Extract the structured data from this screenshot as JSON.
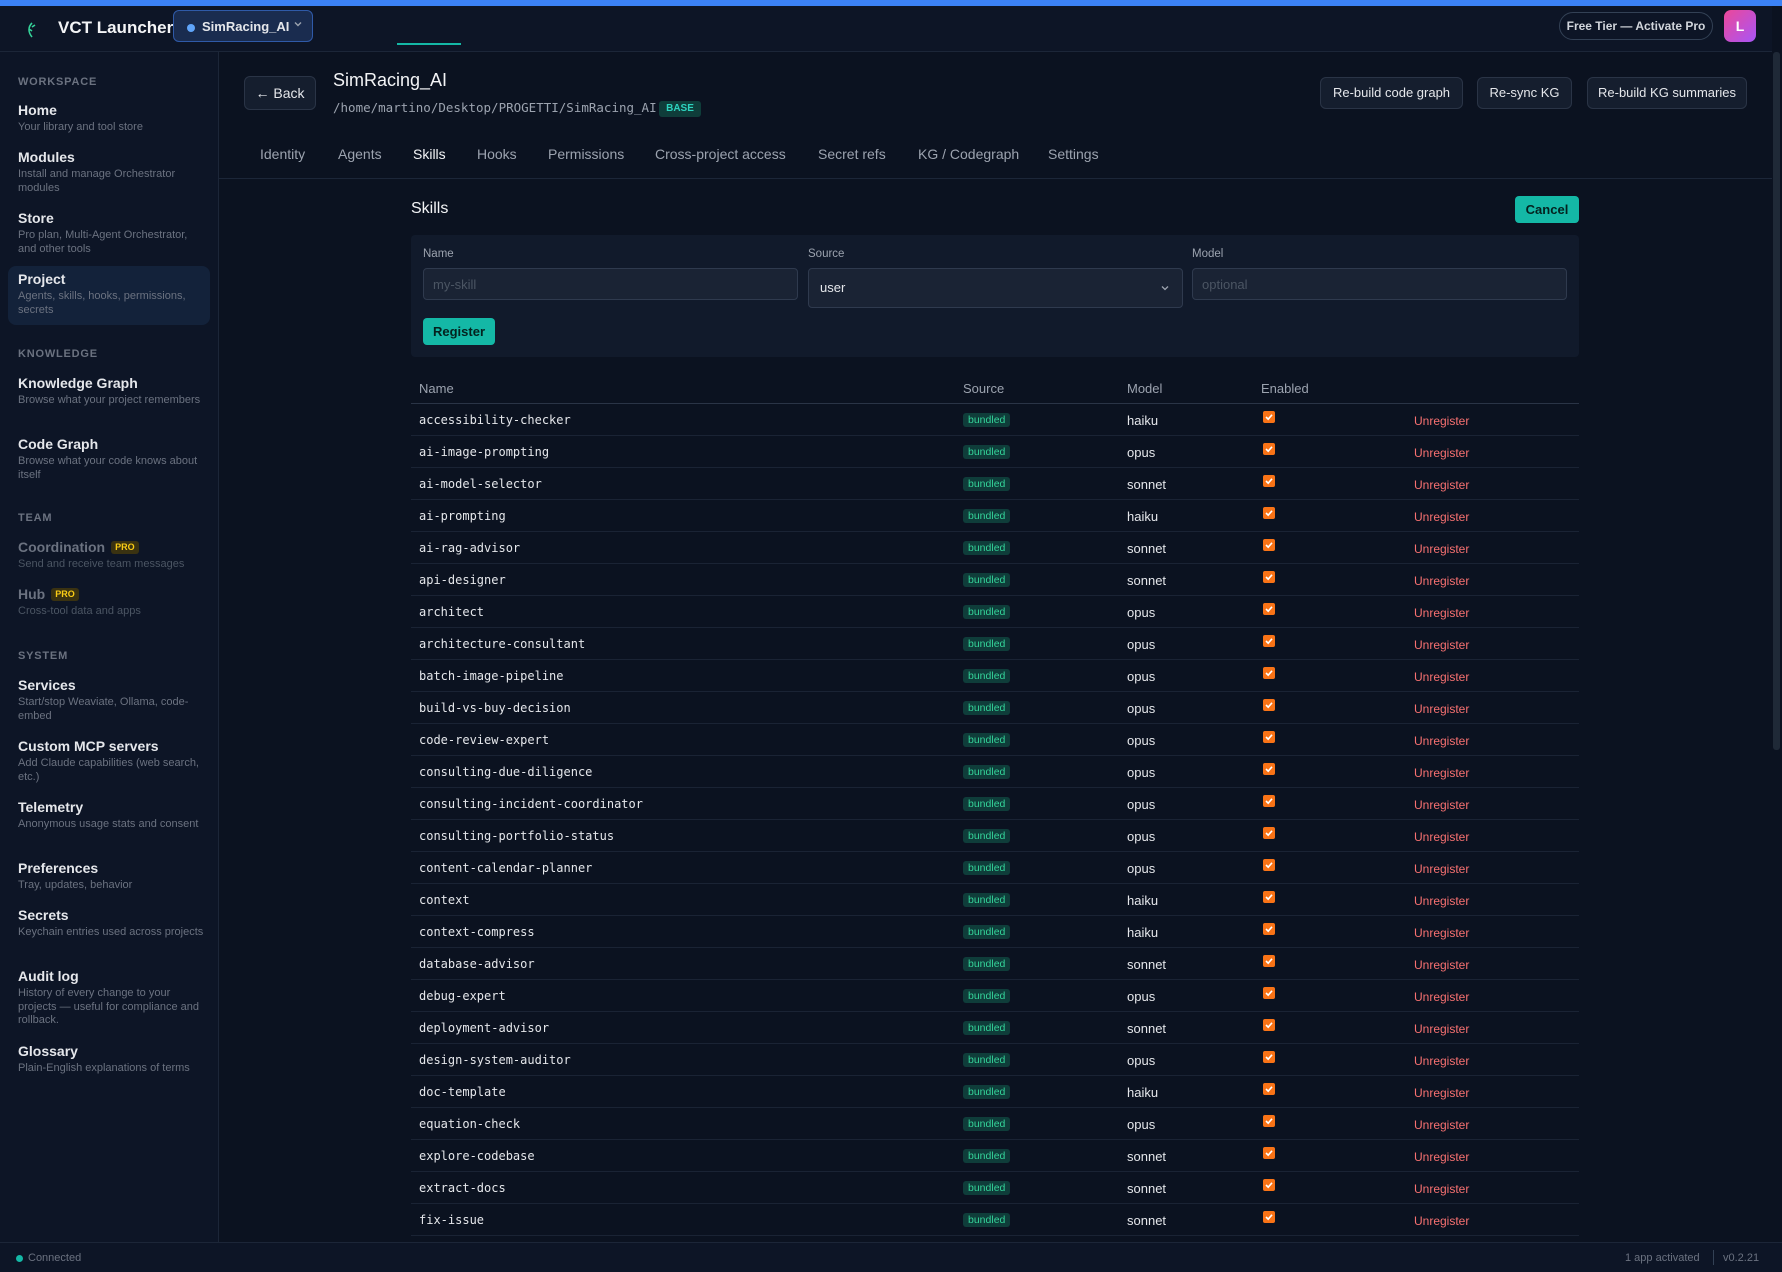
{
  "app": {
    "title": "VCT Launcher",
    "project_selector": "SimRacing_AI",
    "tier_button": "Free Tier — Activate Pro",
    "avatar_initial": "L",
    "accent_color": "#14b8a6"
  },
  "sidebar": {
    "workspace_heading": "WORKSPACE",
    "knowledge_heading": "KNOWLEDGE",
    "team_heading": "TEAM",
    "system_heading": "SYSTEM",
    "items": [
      {
        "title": "Home",
        "sub": "Your library and tool store"
      },
      {
        "title": "Modules",
        "sub": "Install and manage Orchestrator modules"
      },
      {
        "title": "Store",
        "sub": "Pro plan, Multi-Agent Orchestrator, and other tools"
      },
      {
        "title": "Project",
        "sub": "Agents, skills, hooks, permissions, secrets"
      },
      {
        "title": "Knowledge Graph",
        "sub": "Browse what your project remembers"
      },
      {
        "title": "Code Graph",
        "sub": "Browse what your code knows about itself"
      },
      {
        "title": "Coordination",
        "sub": "Send and receive team messages",
        "badge": "PRO"
      },
      {
        "title": "Hub",
        "sub": "Cross-tool data and apps",
        "badge": "PRO"
      },
      {
        "title": "Services",
        "sub": "Start/stop Weaviate, Ollama, code-embed"
      },
      {
        "title": "Custom MCP servers",
        "sub": "Add Claude capabilities (web search, etc.)"
      },
      {
        "title": "Telemetry",
        "sub": "Anonymous usage stats and consent"
      },
      {
        "title": "Preferences",
        "sub": "Tray, updates, behavior"
      },
      {
        "title": "Secrets",
        "sub": "Keychain entries used across projects"
      },
      {
        "title": "Audit log",
        "sub": "History of every change to your projects — useful for compliance and rollback."
      },
      {
        "title": "Glossary",
        "sub": "Plain-English explanations of terms"
      }
    ]
  },
  "header": {
    "back_label": "← Back",
    "title": "SimRacing_AI",
    "path": "/home/martino/Desktop/PROGETTI/SimRacing_AI",
    "base_badge": "BASE",
    "actions": [
      "Re-build code graph",
      "Re-sync KG",
      "Re-build KG summaries"
    ]
  },
  "tabs": [
    "Identity",
    "Agents",
    "Skills",
    "Hooks",
    "Permissions",
    "Cross-project access",
    "Secret refs",
    "KG / Codegraph",
    "Settings"
  ],
  "active_tab": "Skills",
  "skills": {
    "title": "Skills",
    "cancel_label": "Cancel",
    "form": {
      "name_label": "Name",
      "name_placeholder": "my-skill",
      "source_label": "Source",
      "source_value": "user",
      "model_label": "Model",
      "model_placeholder": "optional",
      "register_label": "Register"
    },
    "columns": [
      "Name",
      "Source",
      "Model",
      "Enabled"
    ],
    "unregister_label": "Unregister",
    "rows": [
      {
        "name": "accessibility-checker",
        "source": "bundled",
        "model": "haiku",
        "enabled": true
      },
      {
        "name": "ai-image-prompting",
        "source": "bundled",
        "model": "opus",
        "enabled": true
      },
      {
        "name": "ai-model-selector",
        "source": "bundled",
        "model": "sonnet",
        "enabled": true
      },
      {
        "name": "ai-prompting",
        "source": "bundled",
        "model": "haiku",
        "enabled": true
      },
      {
        "name": "ai-rag-advisor",
        "source": "bundled",
        "model": "sonnet",
        "enabled": true
      },
      {
        "name": "api-designer",
        "source": "bundled",
        "model": "sonnet",
        "enabled": true
      },
      {
        "name": "architect",
        "source": "bundled",
        "model": "opus",
        "enabled": true
      },
      {
        "name": "architecture-consultant",
        "source": "bundled",
        "model": "opus",
        "enabled": true
      },
      {
        "name": "batch-image-pipeline",
        "source": "bundled",
        "model": "opus",
        "enabled": true
      },
      {
        "name": "build-vs-buy-decision",
        "source": "bundled",
        "model": "opus",
        "enabled": true
      },
      {
        "name": "code-review-expert",
        "source": "bundled",
        "model": "opus",
        "enabled": true
      },
      {
        "name": "consulting-due-diligence",
        "source": "bundled",
        "model": "opus",
        "enabled": true
      },
      {
        "name": "consulting-incident-coordinator",
        "source": "bundled",
        "model": "opus",
        "enabled": true
      },
      {
        "name": "consulting-portfolio-status",
        "source": "bundled",
        "model": "opus",
        "enabled": true
      },
      {
        "name": "content-calendar-planner",
        "source": "bundled",
        "model": "opus",
        "enabled": true
      },
      {
        "name": "context",
        "source": "bundled",
        "model": "haiku",
        "enabled": true
      },
      {
        "name": "context-compress",
        "source": "bundled",
        "model": "haiku",
        "enabled": true
      },
      {
        "name": "database-advisor",
        "source": "bundled",
        "model": "sonnet",
        "enabled": true
      },
      {
        "name": "debug-expert",
        "source": "bundled",
        "model": "opus",
        "enabled": true
      },
      {
        "name": "deployment-advisor",
        "source": "bundled",
        "model": "sonnet",
        "enabled": true
      },
      {
        "name": "design-system-auditor",
        "source": "bundled",
        "model": "opus",
        "enabled": true
      },
      {
        "name": "doc-template",
        "source": "bundled",
        "model": "haiku",
        "enabled": true
      },
      {
        "name": "equation-check",
        "source": "bundled",
        "model": "opus",
        "enabled": true
      },
      {
        "name": "explore-codebase",
        "source": "bundled",
        "model": "sonnet",
        "enabled": true
      },
      {
        "name": "extract-docs",
        "source": "bundled",
        "model": "sonnet",
        "enabled": true
      },
      {
        "name": "fix-issue",
        "source": "bundled",
        "model": "sonnet",
        "enabled": true
      }
    ]
  },
  "status": {
    "connection": "Connected",
    "activated": "1 app activated",
    "version": "v0.2.21"
  }
}
